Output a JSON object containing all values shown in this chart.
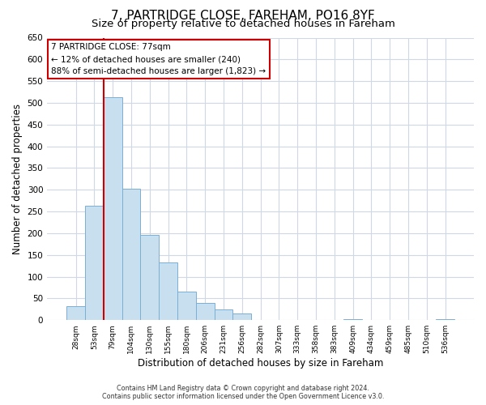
{
  "title": "7, PARTRIDGE CLOSE, FAREHAM, PO16 8YF",
  "subtitle": "Size of property relative to detached houses in Fareham",
  "xlabel": "Distribution of detached houses by size in Fareham",
  "ylabel": "Number of detached properties",
  "bar_labels": [
    "28sqm",
    "53sqm",
    "79sqm",
    "104sqm",
    "130sqm",
    "155sqm",
    "180sqm",
    "206sqm",
    "231sqm",
    "256sqm",
    "282sqm",
    "307sqm",
    "333sqm",
    "358sqm",
    "383sqm",
    "409sqm",
    "434sqm",
    "459sqm",
    "485sqm",
    "510sqm",
    "536sqm"
  ],
  "bar_values": [
    33,
    263,
    513,
    302,
    197,
    132,
    65,
    40,
    24,
    15,
    0,
    0,
    0,
    0,
    0,
    3,
    0,
    0,
    0,
    0,
    3
  ],
  "bar_color": "#c8dff0",
  "bar_edge_color": "#7bafd4",
  "annotation_line1": "7 PARTRIDGE CLOSE: 77sqm",
  "annotation_line2": "← 12% of detached houses are smaller (240)",
  "annotation_line3": "88% of semi-detached houses are larger (1,823) →",
  "vline_x": 1.5,
  "vline_color": "#cc0000",
  "ylim": [
    0,
    650
  ],
  "yticks": [
    0,
    50,
    100,
    150,
    200,
    250,
    300,
    350,
    400,
    450,
    500,
    550,
    600,
    650
  ],
  "footer_line1": "Contains HM Land Registry data © Crown copyright and database right 2024.",
  "footer_line2": "Contains public sector information licensed under the Open Government Licence v3.0.",
  "background_color": "#ffffff",
  "grid_color": "#d0d8e8",
  "title_fontsize": 11,
  "subtitle_fontsize": 9.5
}
